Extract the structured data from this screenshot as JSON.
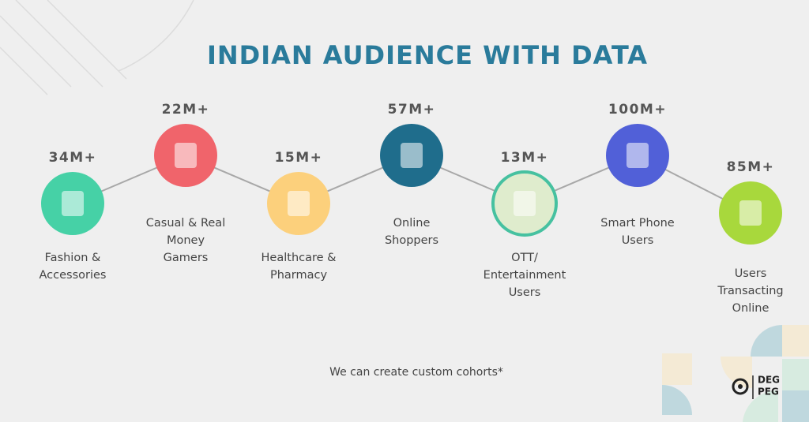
{
  "title": "INDIAN AUDIENCE WITH DATA",
  "items": [
    {
      "value": "34M+",
      "label": [
        "Fashion &",
        "Accessories"
      ],
      "color": "#46d1a6"
    },
    {
      "value": "22M+",
      "label": [
        "Casual & Real",
        "Money",
        "Gamers"
      ],
      "color": "#f0646b"
    },
    {
      "value": "15M+",
      "label": [
        "Healthcare &",
        "Pharmacy"
      ],
      "color": "#fcd07c"
    },
    {
      "value": "57M+",
      "label": [
        "Online",
        "Shoppers"
      ],
      "color": "#1f6d8c"
    },
    {
      "value": "13M+",
      "label": [
        "OTT/",
        "Entertainment",
        "Users"
      ],
      "color": "#dfeccd"
    },
    {
      "value": "100M+",
      "label": [
        "Smart Phone",
        "Users"
      ],
      "color": "#5160d8"
    },
    {
      "value": "85M+",
      "label": [
        "Users",
        "Transacting",
        "Online"
      ],
      "color": "#a8d83c"
    }
  ],
  "footnote": "We can create custom cohorts*",
  "logo": [
    "DEG",
    "PEG"
  ]
}
